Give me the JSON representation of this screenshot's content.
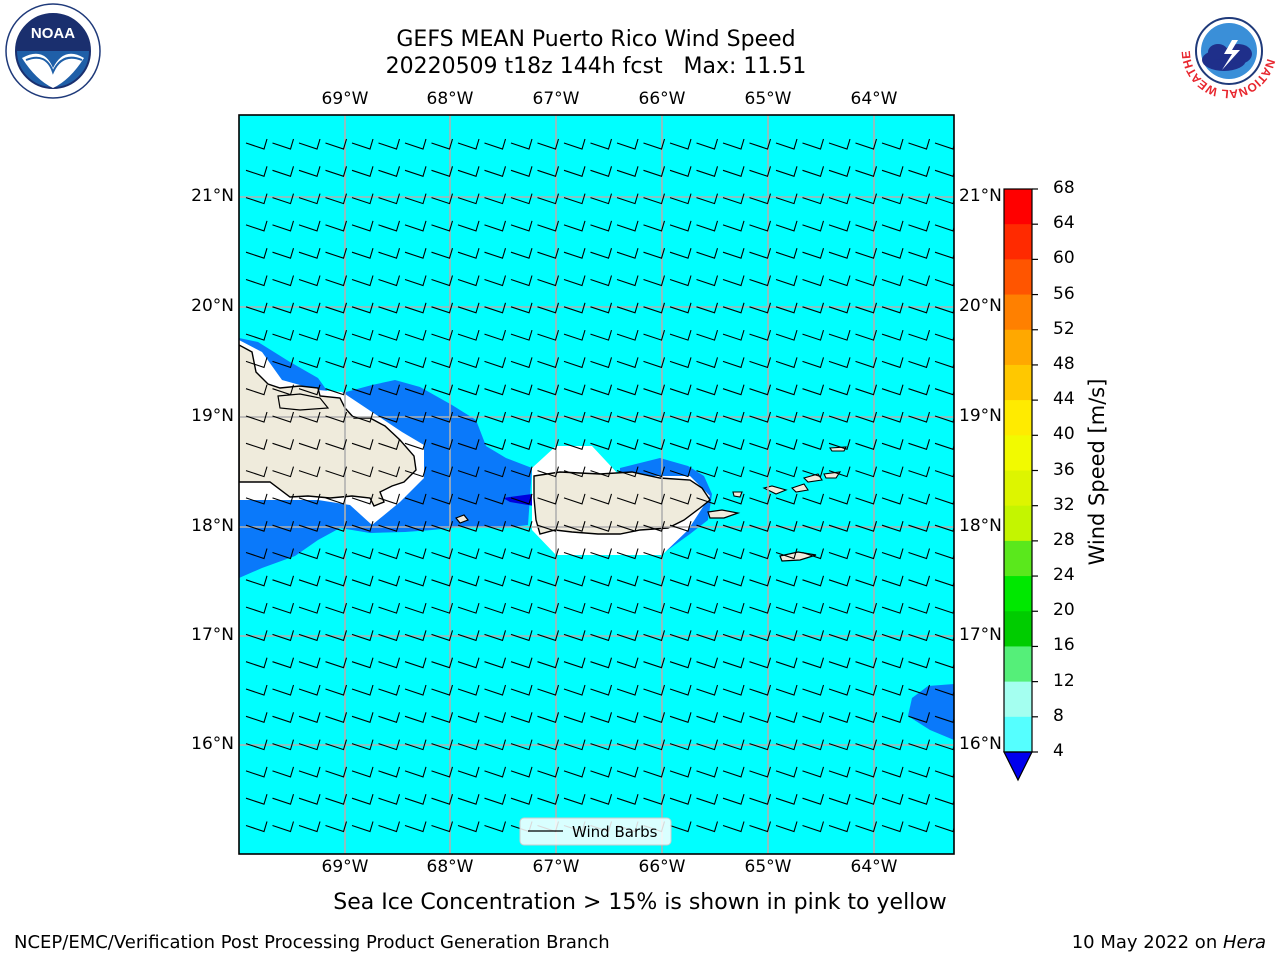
{
  "title": {
    "line1": "GEFS MEAN Puerto Rico Wind Speed",
    "line2": "20220509 t18z 144h fcst   Max: 11.51"
  },
  "map": {
    "lon_labels": [
      "69°W",
      "68°W",
      "67°W",
      "66°W",
      "65°W",
      "64°W"
    ],
    "lat_labels": [
      "21°N",
      "20°N",
      "19°N",
      "18°N",
      "17°N",
      "16°N"
    ],
    "legend_label": "Wind Barbs",
    "colors": {
      "ocean": "#00ffff",
      "land": "#efebdc",
      "band_4_8": "#0a79fa",
      "below_4": "#0000dd",
      "no_data": "#ffffff",
      "grid": "#b0b0b0"
    }
  },
  "colorbar": {
    "title": "Wind Speed [m/s]",
    "ticks": [
      "68",
      "64",
      "60",
      "56",
      "52",
      "48",
      "44",
      "40",
      "36",
      "32",
      "28",
      "24",
      "20",
      "16",
      "12",
      "8",
      "4"
    ],
    "colors": [
      "#ff0000",
      "#ff2a00",
      "#ff5500",
      "#ff8000",
      "#ffa800",
      "#ffc800",
      "#ffeb00",
      "#f2fa00",
      "#ddf500",
      "#c4f500",
      "#5ae81c",
      "#00e800",
      "#00cc00",
      "#55ef79",
      "#a4fff0",
      "#55ffff",
      "#00ffff",
      "#0c7cfa"
    ],
    "extend_color": "#0000ee"
  },
  "subtitle": "Sea Ice Concentration > 15% is shown in pink to yellow",
  "footer": {
    "left": "NCEP/EMC/Verification Post Processing Product Generation Branch",
    "right_prefix": "10 May 2022 on ",
    "right_host": "Hera"
  },
  "logos": {
    "noaa_text": "NOAA",
    "nws_text": "NATIONAL WEATHER SERVICE"
  }
}
